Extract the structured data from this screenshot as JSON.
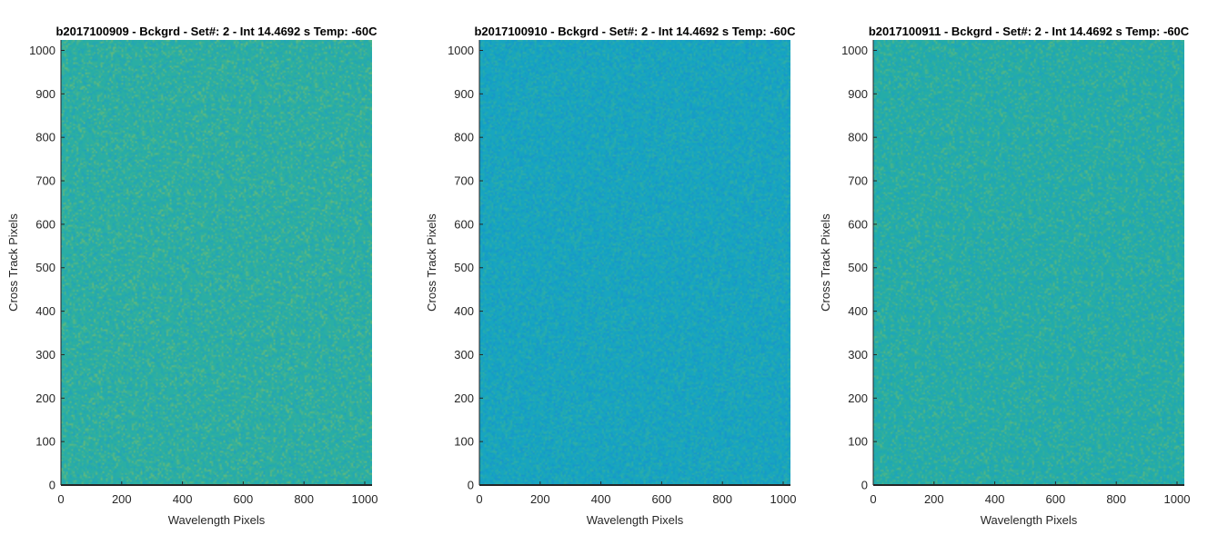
{
  "colors": {
    "background": "#ffffff",
    "axis_line": "#262626",
    "text": "#262626",
    "title": "#000000",
    "colormap": "parula"
  },
  "chart_data": [
    {
      "type": "heatmap",
      "title": "b2017100909 - Bckgrd - Set#: 2 - Int 14.4692 s Temp: -60C",
      "xlabel": "Wavelength Pixels",
      "ylabel": "Cross Track Pixels",
      "xlim": [
        0,
        1024
      ],
      "ylim": [
        0,
        1024
      ],
      "xticks": [
        0,
        200,
        400,
        600,
        800,
        1000
      ],
      "yticks": [
        0,
        100,
        200,
        300,
        400,
        500,
        600,
        700,
        800,
        900,
        1000
      ],
      "grid": false,
      "appearance": "uniform noise field",
      "dominant_color": "#2aaea4",
      "speckle_colors": [
        "#1f9ec6",
        "#47b48c",
        "#7cbf6a",
        "#23a7b4"
      ]
    },
    {
      "type": "heatmap",
      "title": "b2017100910 - Bckgrd - Set#: 2 - Int 14.4692 s Temp: -60C",
      "xlabel": "Wavelength Pixels",
      "ylabel": "Cross Track Pixels",
      "xlim": [
        0,
        1024
      ],
      "ylim": [
        0,
        1024
      ],
      "xticks": [
        0,
        200,
        400,
        600,
        800,
        1000
      ],
      "yticks": [
        0,
        100,
        200,
        300,
        400,
        500,
        600,
        700,
        800,
        900,
        1000
      ],
      "grid": false,
      "appearance": "uniform noise field",
      "dominant_color": "#18a5c0",
      "speckle_colors": [
        "#1a8fd0",
        "#2aaea4",
        "#0f9cc8",
        "#3bb39a"
      ]
    },
    {
      "type": "heatmap",
      "title": "b2017100911 - Bckgrd - Set#: 2 - Int 14.4692 s Temp: -60C",
      "xlabel": "Wavelength Pixels",
      "ylabel": "Cross Track Pixels",
      "xlim": [
        0,
        1024
      ],
      "ylim": [
        0,
        1024
      ],
      "xticks": [
        0,
        200,
        400,
        600,
        800,
        1000
      ],
      "yticks": [
        0,
        100,
        200,
        300,
        400,
        500,
        600,
        700,
        800,
        900,
        1000
      ],
      "grid": false,
      "appearance": "uniform noise field",
      "dominant_color": "#24aca8",
      "speckle_colors": [
        "#1b9fca",
        "#42b28f",
        "#6bbc72",
        "#20a6b8"
      ]
    }
  ]
}
